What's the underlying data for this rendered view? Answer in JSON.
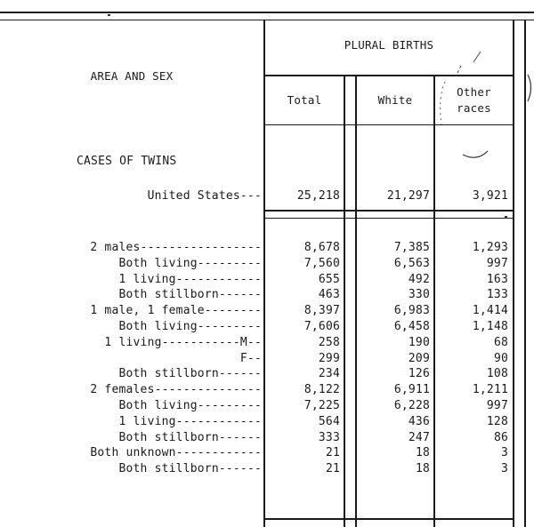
{
  "header": {
    "stub_heading": "AREA AND SEX",
    "spanner": "PLURAL BIRTHS",
    "col_total": "Total",
    "col_white": "White",
    "col_other_1": "Other",
    "col_other_2": "races"
  },
  "section": {
    "title": "CASES OF TWINS"
  },
  "us_row": {
    "label": "United States---",
    "total": "25,218",
    "white": "21,297",
    "other": "3,921"
  },
  "rows": [
    {
      "label": "2 males-----------------",
      "total": "8,678",
      "white": "7,385",
      "other": "1,293"
    },
    {
      "label": "    Both living---------",
      "total": "7,560",
      "white": "6,563",
      "other": "997"
    },
    {
      "label": "    1 living------------",
      "total": "655",
      "white": "492",
      "other": "163"
    },
    {
      "label": "    Both stillborn------",
      "total": "463",
      "white": "330",
      "other": "133"
    },
    {
      "label": "1 male, 1 female--------",
      "total": "8,397",
      "white": "6,983",
      "other": "1,414"
    },
    {
      "label": "    Both living---------",
      "total": "7,606",
      "white": "6,458",
      "other": "1,148"
    },
    {
      "label": "    1 living-----------M--",
      "total": "258",
      "white": "190",
      "other": "68"
    },
    {
      "label": "F--",
      "total": "299",
      "white": "209",
      "other": "90"
    },
    {
      "label": "    Both stillborn------",
      "total": "234",
      "white": "126",
      "other": "108"
    },
    {
      "label": "2 females---------------",
      "total": "8,122",
      "white": "6,911",
      "other": "1,211"
    },
    {
      "label": "    Both living---------",
      "total": "7,225",
      "white": "6,228",
      "other": "997"
    },
    {
      "label": "    1 living------------",
      "total": "564",
      "white": "436",
      "other": "128"
    },
    {
      "label": "    Both stillborn------",
      "total": "333",
      "white": "247",
      "other": "86"
    },
    {
      "label": "Both unknown------------",
      "total": "21",
      "white": "18",
      "other": "3"
    },
    {
      "label": "    Both stillborn------",
      "total": "21",
      "white": "18",
      "other": "3"
    }
  ]
}
